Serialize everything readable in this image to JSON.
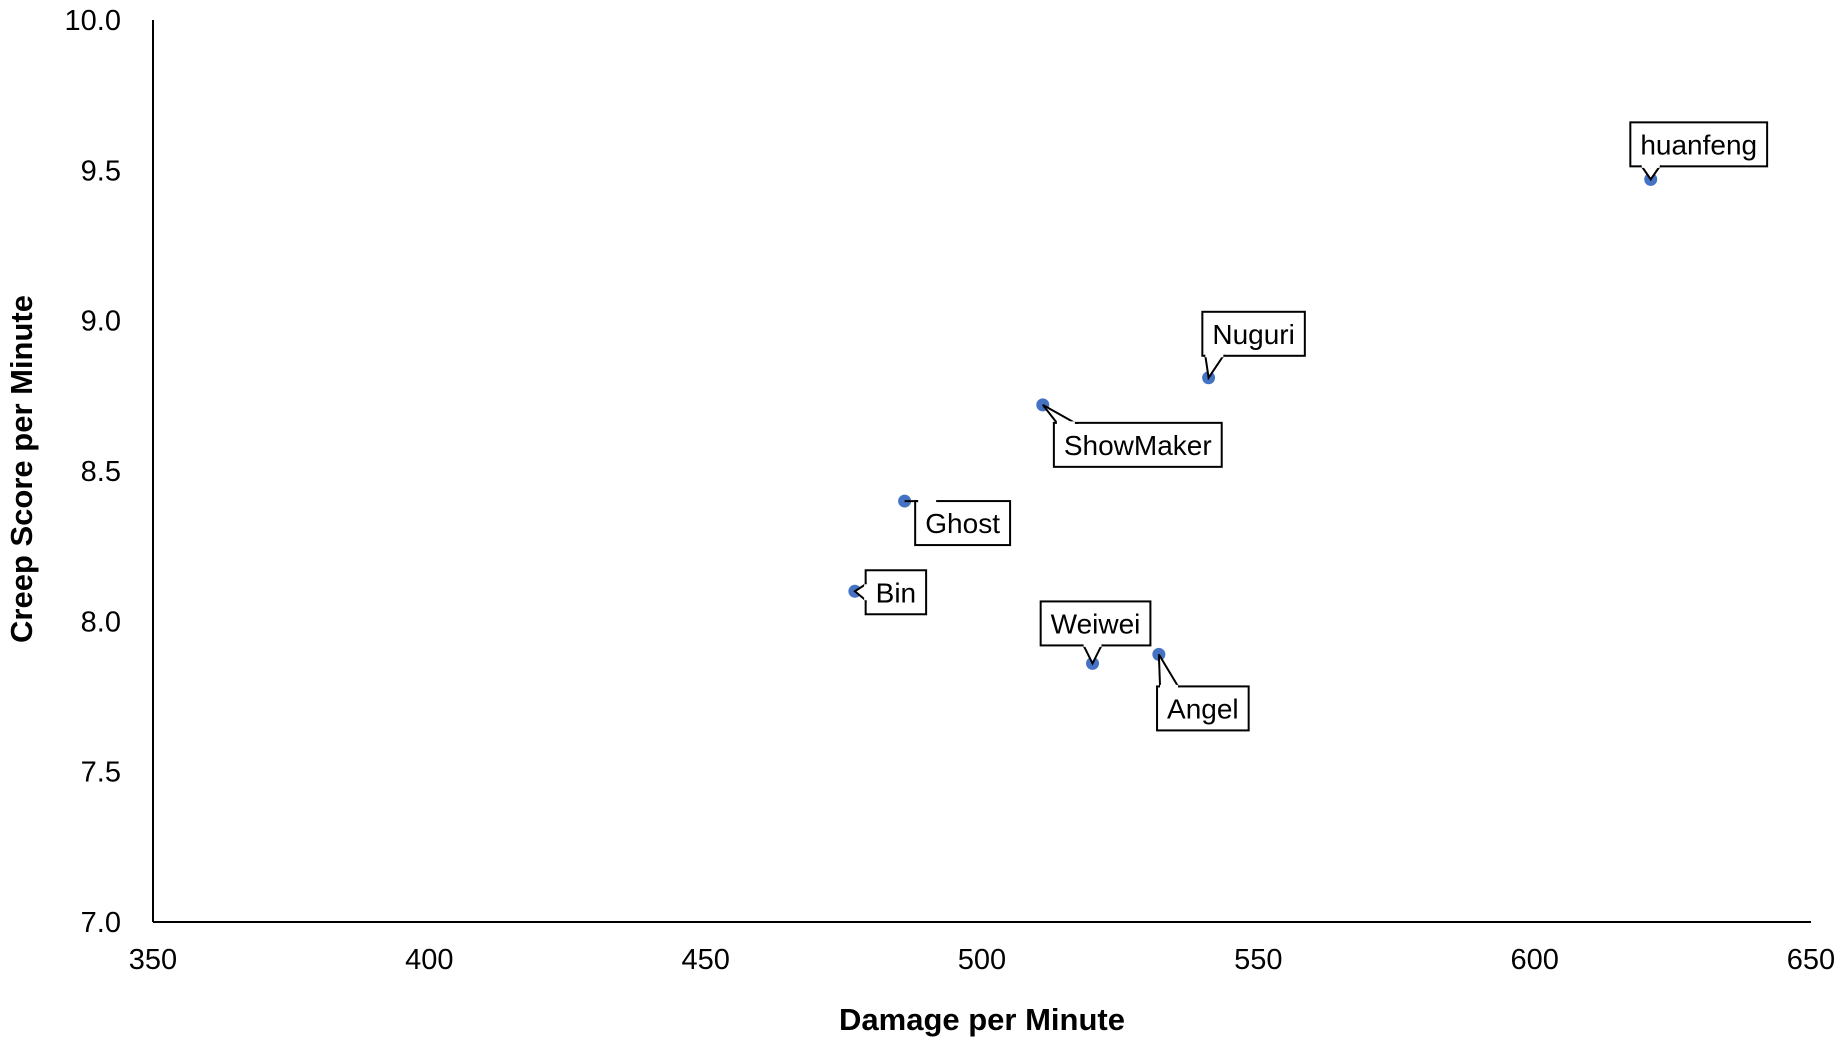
{
  "chart_data": {
    "type": "scatter",
    "title": "",
    "xlabel": "Damage per Minute",
    "ylabel": "Creep Score per Minute",
    "xlim": [
      350,
      650
    ],
    "ylim": [
      7.0,
      10.0
    ],
    "x_ticks": [
      "350",
      "400",
      "450",
      "500",
      "550",
      "600",
      "650"
    ],
    "y_ticks": [
      "7.0",
      "7.5",
      "8.0",
      "8.5",
      "9.0",
      "9.5",
      "10.0"
    ],
    "grid": false,
    "legend": "none",
    "point_color": "#4472C4",
    "points": [
      {
        "label": "huanfeng",
        "x": 621,
        "y": 9.47
      },
      {
        "label": "Nuguri",
        "x": 541,
        "y": 8.81
      },
      {
        "label": "ShowMaker",
        "x": 511,
        "y": 8.72
      },
      {
        "label": "Ghost",
        "x": 486,
        "y": 8.4
      },
      {
        "label": "Bin",
        "x": 477,
        "y": 8.1
      },
      {
        "label": "Weiwei",
        "x": 520,
        "y": 7.86
      },
      {
        "label": "Angel",
        "x": 532,
        "y": 7.89
      }
    ]
  }
}
